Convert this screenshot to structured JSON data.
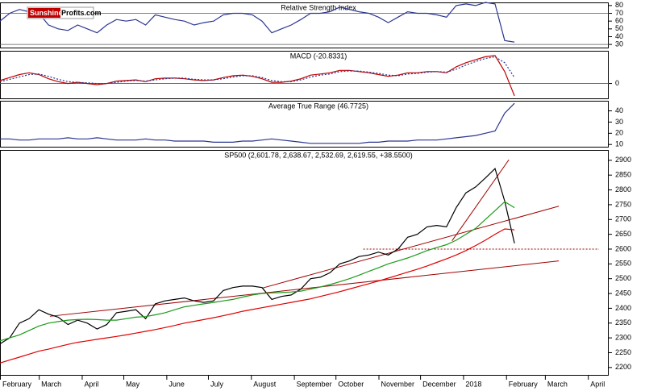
{
  "logo": {
    "part1": "Sunshine",
    "part2": "Profits.com"
  },
  "chart_data": [
    {
      "type": "line",
      "title": "Relative Strength Index",
      "xlim": [
        0,
        439
      ],
      "ylim": [
        26,
        84
      ],
      "yticks": [
        30,
        40,
        50,
        60,
        70,
        80
      ],
      "hlines": [
        70,
        30
      ],
      "x": [
        0,
        7,
        14,
        21,
        28,
        35,
        42,
        49,
        56,
        63,
        70,
        77,
        84,
        91,
        98,
        105,
        112,
        119,
        126,
        133,
        140,
        147,
        154,
        161,
        168,
        175,
        182,
        189,
        196,
        203,
        210,
        217,
        224,
        231,
        238,
        245,
        252,
        259,
        266,
        273,
        280,
        287,
        294,
        301,
        308,
        315,
        322,
        329,
        336,
        343,
        350,
        357,
        364,
        371
      ],
      "series": [
        {
          "color": "#2a3590",
          "dash": false,
          "values": [
            60,
            70,
            75,
            72,
            70,
            55,
            50,
            48,
            55,
            50,
            45,
            55,
            62,
            60,
            62,
            55,
            68,
            65,
            62,
            60,
            55,
            58,
            60,
            68,
            70,
            70,
            68,
            60,
            45,
            50,
            55,
            62,
            70,
            70,
            72,
            78,
            75,
            72,
            70,
            65,
            58,
            65,
            72,
            70,
            70,
            68,
            65,
            80,
            82,
            80,
            84,
            82,
            35,
            33
          ]
        }
      ]
    },
    {
      "type": "line",
      "title": "MACD (-20.8331)",
      "xlim": [
        0,
        439
      ],
      "ylim": [
        -25,
        55
      ],
      "yticks": [
        0
      ],
      "hlines": [
        0
      ],
      "x": [
        0,
        7,
        14,
        21,
        28,
        35,
        42,
        49,
        56,
        63,
        70,
        77,
        84,
        91,
        98,
        105,
        112,
        119,
        126,
        133,
        140,
        147,
        154,
        161,
        168,
        175,
        182,
        189,
        196,
        203,
        210,
        217,
        224,
        231,
        238,
        245,
        252,
        259,
        266,
        273,
        280,
        287,
        294,
        301,
        308,
        315,
        322,
        329,
        336,
        343,
        350,
        357,
        364,
        371
      ],
      "series": [
        {
          "color": "#c00000",
          "dash": false,
          "values": [
            5,
            10,
            15,
            18,
            15,
            8,
            3,
            0,
            2,
            0,
            -2,
            0,
            4,
            5,
            6,
            3,
            8,
            9,
            9,
            8,
            6,
            5,
            6,
            10,
            13,
            14,
            12,
            8,
            2,
            2,
            4,
            8,
            14,
            16,
            18,
            22,
            22,
            20,
            18,
            15,
            12,
            14,
            18,
            18,
            20,
            20,
            18,
            28,
            35,
            40,
            45,
            47,
            20,
            -20.8331
          ]
        },
        {
          "color": "#2a3590",
          "dash": true,
          "values": [
            3,
            7,
            11,
            15,
            16,
            12,
            7,
            3,
            2,
            1,
            0,
            0,
            2,
            4,
            5,
            4,
            6,
            8,
            9,
            9,
            7,
            6,
            6,
            8,
            11,
            13,
            13,
            10,
            5,
            3,
            3,
            6,
            11,
            14,
            16,
            20,
            21,
            21,
            19,
            17,
            14,
            13,
            16,
            17,
            19,
            20,
            19,
            24,
            31,
            37,
            42,
            45,
            35,
            10
          ]
        }
      ]
    },
    {
      "type": "line",
      "title": "Average True Range (46.7725)",
      "xlim": [
        0,
        439
      ],
      "ylim": [
        8,
        49
      ],
      "yticks": [
        10,
        20,
        30,
        40
      ],
      "x": [
        0,
        7,
        14,
        21,
        28,
        35,
        42,
        49,
        56,
        63,
        70,
        77,
        84,
        91,
        98,
        105,
        112,
        119,
        126,
        133,
        140,
        147,
        154,
        161,
        168,
        175,
        182,
        189,
        196,
        203,
        210,
        217,
        224,
        231,
        238,
        245,
        252,
        259,
        266,
        273,
        280,
        287,
        294,
        301,
        308,
        315,
        322,
        329,
        336,
        343,
        350,
        357,
        364,
        371
      ],
      "series": [
        {
          "color": "#2a3590",
          "dash": false,
          "values": [
            15,
            15,
            14,
            14,
            15,
            15,
            15,
            16,
            15,
            15,
            16,
            15,
            14,
            14,
            14,
            15,
            14,
            14,
            13,
            13,
            13,
            13,
            12,
            12,
            12,
            13,
            13,
            14,
            15,
            14,
            13,
            12,
            11,
            11,
            11,
            11,
            11,
            11,
            12,
            12,
            13,
            13,
            13,
            14,
            14,
            14,
            15,
            16,
            17,
            18,
            20,
            22,
            38,
            46.7725
          ]
        }
      ]
    },
    {
      "type": "line",
      "title": "SP500 (2,601.78, 2,638.67, 2,532.69, 2,619.55, +38.5500)",
      "xlim": [
        0,
        439
      ],
      "ylim": [
        2175,
        2935
      ],
      "yticks": [
        2200,
        2250,
        2300,
        2350,
        2400,
        2450,
        2500,
        2550,
        2600,
        2650,
        2700,
        2750,
        2800,
        2850,
        2900
      ],
      "xticks": [
        {
          "value": 0,
          "label": "February"
        },
        {
          "value": 28,
          "label": "March"
        },
        {
          "value": 59,
          "label": "April"
        },
        {
          "value": 89,
          "label": "May"
        },
        {
          "value": 120,
          "label": "June"
        },
        {
          "value": 150,
          "label": "July"
        },
        {
          "value": 181,
          "label": "August"
        },
        {
          "value": 212,
          "label": "September"
        },
        {
          "value": 242,
          "label": "October"
        },
        {
          "value": 273,
          "label": "November"
        },
        {
          "value": 303,
          "label": "December"
        },
        {
          "value": 334,
          "label": "2018"
        },
        {
          "value": 365,
          "label": "February"
        },
        {
          "value": 393,
          "label": "March"
        },
        {
          "value": 424,
          "label": "April"
        }
      ],
      "x": [
        0,
        7,
        14,
        21,
        28,
        35,
        42,
        49,
        56,
        63,
        70,
        77,
        84,
        91,
        98,
        105,
        112,
        119,
        126,
        133,
        140,
        147,
        154,
        161,
        168,
        175,
        182,
        189,
        196,
        203,
        210,
        217,
        224,
        231,
        238,
        245,
        252,
        259,
        266,
        273,
        280,
        287,
        294,
        301,
        308,
        315,
        322,
        329,
        336,
        343,
        350,
        357,
        364,
        371
      ],
      "series": [
        {
          "color": "#000000",
          "dash": false,
          "values": [
            2280,
            2300,
            2350,
            2365,
            2395,
            2380,
            2370,
            2345,
            2360,
            2350,
            2330,
            2345,
            2385,
            2390,
            2395,
            2365,
            2415,
            2425,
            2430,
            2435,
            2425,
            2420,
            2425,
            2460,
            2470,
            2475,
            2475,
            2470,
            2430,
            2440,
            2445,
            2465,
            2500,
            2505,
            2520,
            2550,
            2560,
            2575,
            2580,
            2590,
            2580,
            2600,
            2640,
            2650,
            2675,
            2680,
            2675,
            2740,
            2790,
            2810,
            2840,
            2872,
            2762,
            2619.55
          ]
        },
        {
          "color": "#1a9a1a",
          "dash": false,
          "values": [
            2290,
            2300,
            2310,
            2325,
            2340,
            2350,
            2355,
            2360,
            2362,
            2363,
            2362,
            2360,
            2360,
            2365,
            2370,
            2372,
            2378,
            2385,
            2395,
            2405,
            2410,
            2415,
            2420,
            2425,
            2430,
            2438,
            2445,
            2450,
            2452,
            2453,
            2455,
            2458,
            2465,
            2472,
            2480,
            2490,
            2500,
            2512,
            2525,
            2537,
            2550,
            2560,
            2570,
            2582,
            2595,
            2605,
            2615,
            2630,
            2650,
            2670,
            2700,
            2730,
            2760,
            2740
          ]
        },
        {
          "color": "#e00000",
          "dash": false,
          "values": [
            2215,
            2225,
            2235,
            2245,
            2255,
            2262,
            2270,
            2278,
            2285,
            2290,
            2295,
            2300,
            2305,
            2310,
            2316,
            2322,
            2328,
            2335,
            2342,
            2350,
            2356,
            2362,
            2368,
            2375,
            2382,
            2390,
            2396,
            2402,
            2408,
            2414,
            2420,
            2426,
            2432,
            2440,
            2448,
            2456,
            2465,
            2474,
            2483,
            2492,
            2502,
            2512,
            2522,
            2532,
            2543,
            2555,
            2567,
            2580,
            2595,
            2612,
            2630,
            2650,
            2668,
            2665
          ]
        }
      ],
      "trendlines": [
        {
          "x": [
            36,
            403
          ],
          "y": [
            2373,
            2560
          ],
          "color": "#a00000"
        },
        {
          "x": [
            189,
            403
          ],
          "y": [
            2468,
            2745
          ],
          "color": "#a00000"
        },
        {
          "x": [
            326,
            367
          ],
          "y": [
            2628,
            2902
          ],
          "color": "#a00000"
        }
      ],
      "hline": {
        "x": [
          262,
          432
        ],
        "y": 2600,
        "color": "#a00000"
      }
    }
  ]
}
